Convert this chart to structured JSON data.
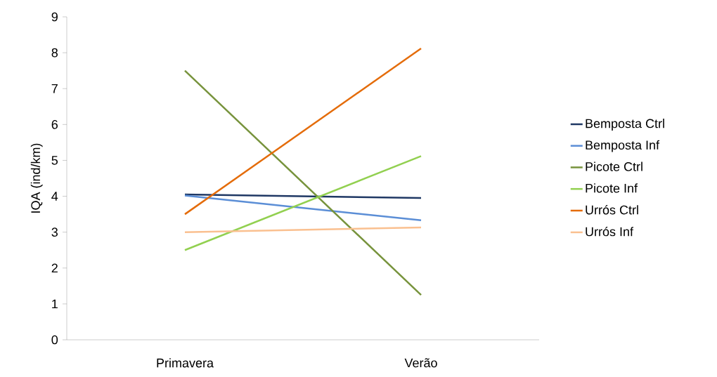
{
  "chart_data": {
    "type": "line",
    "ylabel": "IQA (ind/km)",
    "categories": [
      "Primavera",
      "Verão"
    ],
    "series": [
      {
        "name": "Bemposta Ctrl",
        "color": "#1f3864",
        "values": [
          4.05,
          3.95
        ]
      },
      {
        "name": "Bemposta Inf",
        "color": "#5b8ed6",
        "values": [
          4.02,
          3.33
        ]
      },
      {
        "name": "Picote Ctrl",
        "color": "#77933c",
        "values": [
          7.5,
          1.25
        ]
      },
      {
        "name": "Picote Inf",
        "color": "#92d050",
        "values": [
          2.5,
          5.12
        ]
      },
      {
        "name": "Urrós Ctrl",
        "color": "#e46c0a",
        "values": [
          3.5,
          8.12
        ]
      },
      {
        "name": "Urrós Inf",
        "color": "#fac090",
        "values": [
          3.0,
          3.13
        ]
      }
    ],
    "ylim": [
      0,
      9
    ],
    "yticks": [
      0,
      1,
      2,
      3,
      4,
      5,
      6,
      7,
      8,
      9
    ],
    "grid": false,
    "legend": "right",
    "marker": "none",
    "line_style": "solid"
  }
}
